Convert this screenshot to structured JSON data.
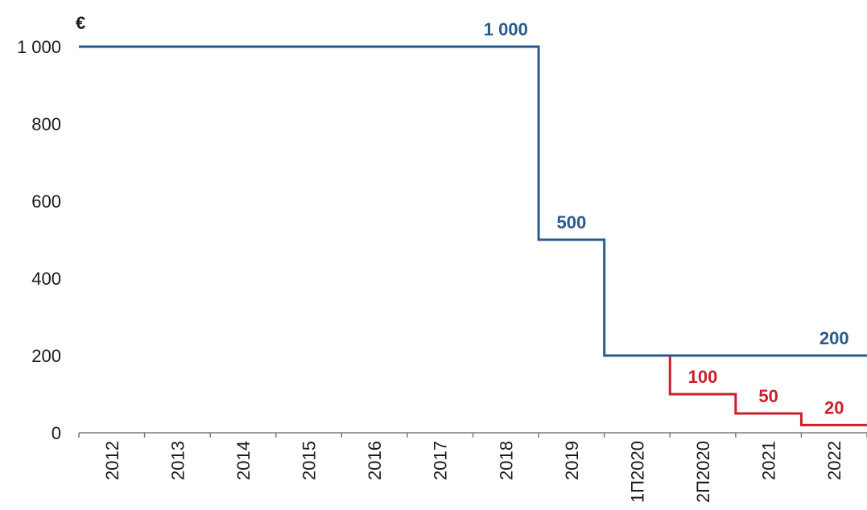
{
  "chart_data": {
    "type": "line",
    "step": true,
    "unit_label": "€",
    "categories": [
      "2012",
      "2013",
      "2014",
      "2015",
      "2016",
      "2017",
      "2018",
      "2019",
      "1Π2020",
      "2Π2020",
      "2021",
      "2022"
    ],
    "ylim": [
      0,
      1000
    ],
    "yticks": [
      {
        "value": 0,
        "label": "0"
      },
      {
        "value": 200,
        "label": "200"
      },
      {
        "value": 400,
        "label": "400"
      },
      {
        "value": 600,
        "label": "600"
      },
      {
        "value": 800,
        "label": "800"
      },
      {
        "value": 1000,
        "label": "1 000"
      }
    ],
    "grid": false,
    "series": [
      {
        "color": "#2a5a8c",
        "values": [
          1000,
          1000,
          1000,
          1000,
          1000,
          1000,
          1000,
          500,
          200,
          200,
          200,
          200
        ],
        "labels": [
          {
            "category": "2018",
            "text": "1 000"
          },
          {
            "category": "2019",
            "text": "500"
          },
          {
            "category": "2022",
            "text": "200"
          }
        ]
      },
      {
        "color": "#cc1f2b",
        "values": [
          null,
          null,
          null,
          null,
          null,
          null,
          null,
          null,
          200,
          100,
          50,
          20
        ],
        "labels": [
          {
            "category": "2Π2020",
            "text": "100"
          },
          {
            "category": "2021",
            "text": "50"
          },
          {
            "category": "2022",
            "text": "20"
          }
        ]
      }
    ]
  }
}
